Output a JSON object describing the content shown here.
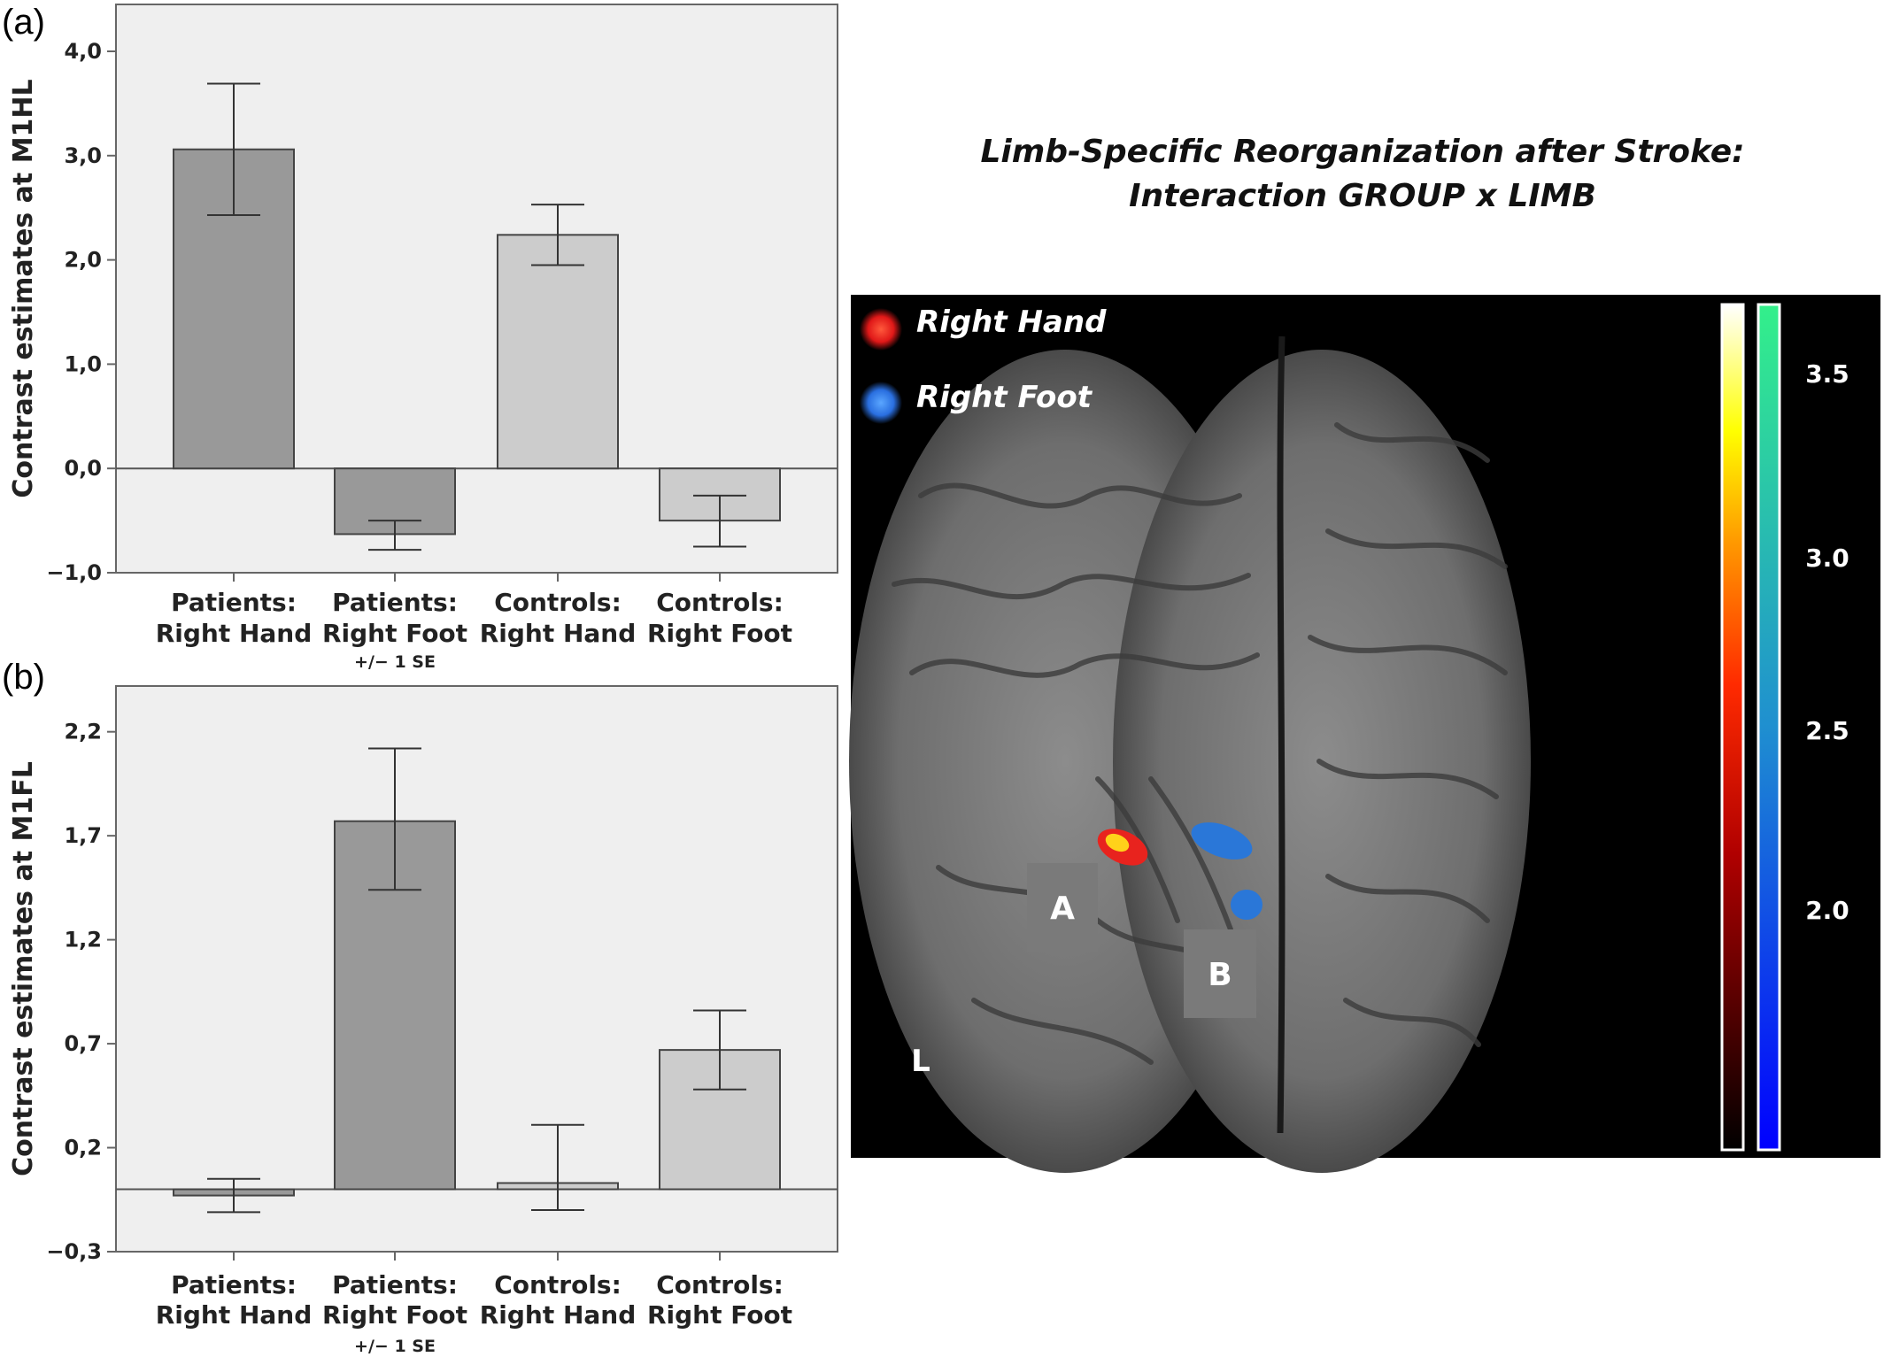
{
  "colors": {
    "patients_bar": "#999999",
    "controls_bar": "#cccccc",
    "plot_bg": "#efefef",
    "axis": "#666666",
    "red_blob": "#e8231e",
    "blue_blob": "#2a77d8"
  },
  "chart_data": [
    {
      "panel_label": "(a)",
      "type": "bar",
      "ylabel": "Contrast estimates at M1HL",
      "ylim": [
        -1.0,
        4.45
      ],
      "yticks": [
        -1.0,
        0.0,
        1.0,
        2.0,
        3.0,
        4.0
      ],
      "ytick_labels": [
        "−1,0",
        "0,0",
        "1,0",
        "2,0",
        "3,0",
        "4,0"
      ],
      "categories": [
        [
          "Patients:",
          "Right Hand"
        ],
        [
          "Patients:",
          "Right Foot"
        ],
        [
          "Controls:",
          "Right Hand"
        ],
        [
          "Controls:",
          "Right Foot"
        ]
      ],
      "values": [
        3.06,
        -0.63,
        2.24,
        -0.5
      ],
      "error_low": [
        2.43,
        -0.78,
        1.95,
        -0.75
      ],
      "error_high": [
        3.69,
        -0.5,
        2.53,
        -0.26
      ],
      "bar_groups": [
        "patients",
        "patients",
        "controls",
        "controls"
      ],
      "note": "+/− 1 SE"
    },
    {
      "panel_label": "(b)",
      "type": "bar",
      "ylabel": "Contrast estimates at M1FL",
      "ylim": [
        -0.3,
        2.42
      ],
      "yticks": [
        -0.3,
        0.2,
        0.7,
        1.2,
        1.7,
        2.2
      ],
      "ytick_labels": [
        "−0,3",
        "0,2",
        "0,7",
        "1,2",
        "1,7",
        "2,2"
      ],
      "categories": [
        [
          "Patients:",
          "Right Hand"
        ],
        [
          "Patients:",
          "Right Foot"
        ],
        [
          "Controls:",
          "Right Hand"
        ],
        [
          "Controls:",
          "Right Foot"
        ]
      ],
      "values": [
        -0.03,
        1.77,
        0.03,
        0.67
      ],
      "error_low": [
        -0.11,
        1.44,
        -0.1,
        0.48
      ],
      "error_high": [
        0.05,
        2.12,
        0.31,
        0.86
      ],
      "bar_groups": [
        "patients",
        "patients",
        "controls",
        "controls"
      ],
      "note": "+/− 1 SE"
    }
  ],
  "brain_figure": {
    "title_line1": "Limb-Specific Reorganization after Stroke:",
    "title_line2": "Interaction GROUP x LIMB",
    "legend": [
      {
        "label": "Right Hand",
        "color": "#e8231e"
      },
      {
        "label": "Right Foot",
        "color": "#2a77d8"
      }
    ],
    "colorbar_ticks": [
      "3.5",
      "3.0",
      "2.5",
      "2.0"
    ],
    "region_labels": [
      "A",
      "B"
    ],
    "side_label": "L"
  }
}
